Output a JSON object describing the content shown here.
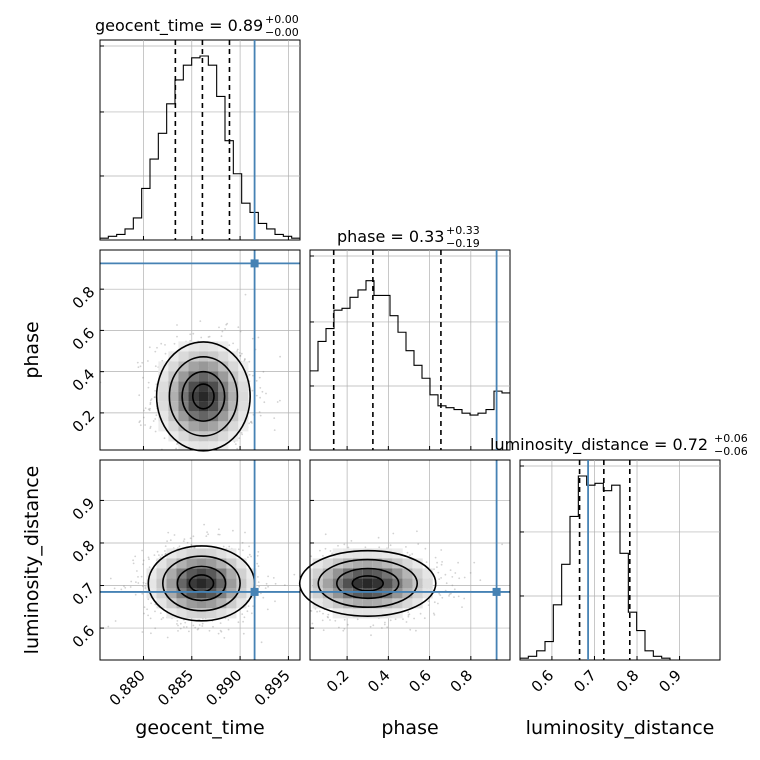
{
  "chart_data": {
    "type": "corner",
    "parameters": [
      "geocent_time",
      "phase",
      "luminosity_distance"
    ],
    "injection": {
      "geocent_time": 0.8915,
      "phase": 0.925,
      "luminosity_distance": 0.685
    },
    "colors": {
      "injection": "#4682b4",
      "hist": "#000000",
      "grid": "#b0b0b0",
      "scatter": "#7f7f7f"
    },
    "grid": true,
    "titles": {
      "geocent_time": {
        "label": "geocent_time = 0.89",
        "plus": "+0.00",
        "minus": "−0.00"
      },
      "phase": {
        "label": "phase = 0.33",
        "plus": "+0.33",
        "minus": "−0.19"
      },
      "luminosity_distance": {
        "label": "luminosity_distance = 0.72",
        "plus": "+0.06",
        "minus": "−0.06"
      }
    },
    "axis_labels": {
      "geocent_time": "geocent_time",
      "phase": "phase",
      "luminosity_distance": "luminosity_distance"
    },
    "ranges": {
      "geocent_time": [
        0.8755,
        0.8962
      ],
      "phase": [
        0.02,
        0.99
      ],
      "luminosity_distance": [
        0.525,
        0.995
      ]
    },
    "ticks": {
      "geocent_time": [
        "0.880",
        "0.885",
        "0.890",
        "0.895"
      ],
      "phase": [
        "0.2",
        "0.4",
        "0.6",
        "0.8"
      ],
      "luminosity_distance": [
        "0.6",
        "0.7",
        "0.8",
        "0.9"
      ]
    },
    "quantiles": {
      "geocent_time": [
        0.8833,
        0.8861,
        0.8889
      ],
      "phase": [
        0.135,
        0.325,
        0.655
      ],
      "luminosity_distance": [
        0.665,
        0.722,
        0.783
      ]
    },
    "hist1d": {
      "geocent_time": [
        0.01,
        0.02,
        0.03,
        0.06,
        0.12,
        0.28,
        0.44,
        0.58,
        0.74,
        0.87,
        0.95,
        0.99,
        1.0,
        0.95,
        0.78,
        0.54,
        0.36,
        0.2,
        0.15,
        0.09,
        0.06,
        0.03,
        0.02,
        0.01
      ],
      "phase": [
        0.43,
        0.59,
        0.66,
        0.76,
        0.77,
        0.83,
        0.87,
        0.92,
        0.84,
        0.84,
        0.73,
        0.64,
        0.54,
        0.46,
        0.39,
        0.3,
        0.24,
        0.23,
        0.22,
        0.2,
        0.19,
        0.2,
        0.22,
        0.32,
        0.31
      ],
      "luminosity_distance": [
        0.01,
        0.02,
        0.05,
        0.1,
        0.3,
        0.52,
        0.78,
        1.0,
        0.95,
        0.96,
        0.92,
        0.95,
        0.58,
        0.26,
        0.16,
        0.05,
        0.02,
        0.01,
        0,
        0,
        0,
        0,
        0,
        0
      ]
    },
    "posterior_2d": {
      "phase_vs_geocent_time": {
        "peak_x": 0.8862,
        "peak_y": 0.28,
        "spread_x": 0.0022,
        "spread_y": 0.12
      },
      "luminosity_distance_vs_geocent_time": {
        "peak_x": 0.886,
        "peak_y": 0.705,
        "spread_x": 0.0025,
        "spread_y": 0.04
      },
      "luminosity_distance_vs_phase": {
        "peak_x": 0.3,
        "peak_y": 0.705,
        "spread_x": 0.15,
        "spread_y": 0.035
      }
    }
  }
}
